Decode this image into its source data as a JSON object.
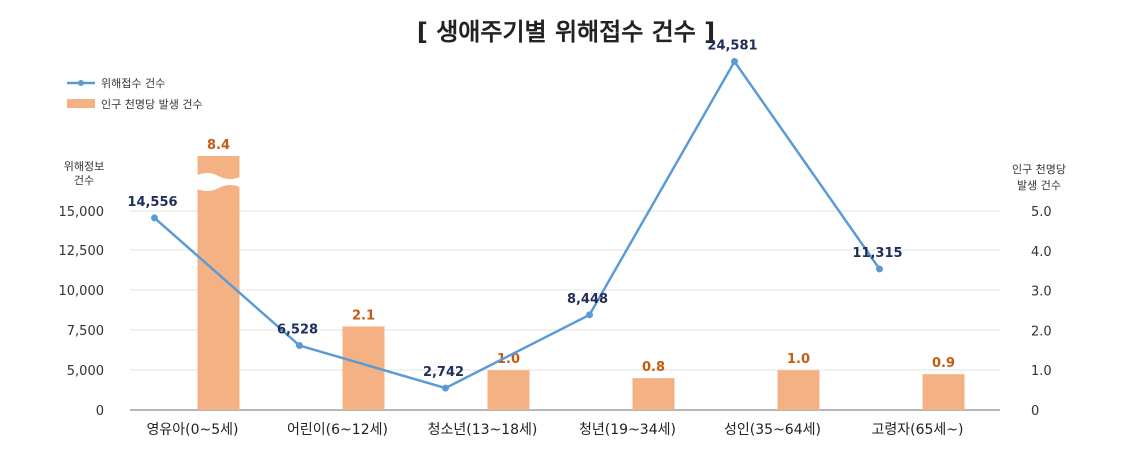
{
  "chart_data": {
    "type": "bar+line",
    "title": "[ 생애주기별 위해접수 건수 ]",
    "categories": [
      "영유아(0~5세)",
      "어린이(6~12세)",
      "청소년(13~18세)",
      "청년(19~34세)",
      "성인(35~64세)",
      "고령자(65세~)"
    ],
    "series": [
      {
        "name": "위해접수 건수",
        "kind": "line",
        "axis": "left",
        "color": "#5b9bd5",
        "values": [
          14556,
          6528,
          2742,
          8448,
          24581,
          11315
        ],
        "labels": [
          "14,556",
          "6,528",
          "2,742",
          "8,448",
          "24,581",
          "11,315"
        ]
      },
      {
        "name": "인구 천명당 발생 건수",
        "kind": "bar",
        "axis": "right",
        "color": "#f4b183",
        "values": [
          8.4,
          2.1,
          1.0,
          0.8,
          1.0,
          0.9
        ],
        "labels": [
          "8.4",
          "2.1",
          "1.0",
          "0.8",
          "1.0",
          "0.9"
        ]
      }
    ],
    "left_axis": {
      "title_lines": [
        "위해정보",
        "건수"
      ],
      "ylim": [
        0,
        15000
      ],
      "ticks": [
        0,
        5000,
        7500,
        10000,
        12500,
        15000
      ],
      "tick_labels": [
        "0",
        "5,000",
        "7,500",
        "10,000",
        "12,500",
        "15,000"
      ]
    },
    "right_axis": {
      "title_lines": [
        "인구 천명당",
        "발생 건수"
      ],
      "ylim": [
        0,
        5.0
      ],
      "ticks": [
        0,
        1.0,
        2.0,
        3.0,
        4.0,
        5.0
      ],
      "tick_labels": [
        "0",
        "1.0",
        "2.0",
        "3.0",
        "4.0",
        "5.0"
      ]
    },
    "axis_break": true,
    "grid": true,
    "legend": "top-left",
    "colors": {
      "line": "#5b9bd5",
      "bar": "#f4b183",
      "line_label": "#1f2f5a",
      "bar_label": "#c55a11",
      "grid": "#e3e3e3"
    }
  }
}
